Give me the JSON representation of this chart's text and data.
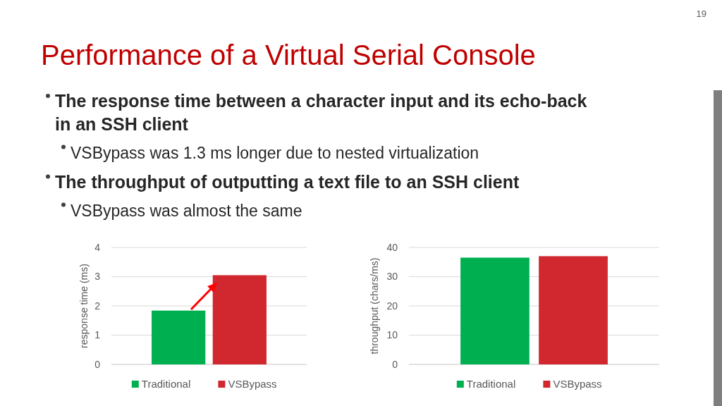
{
  "chart_data": [
    {
      "type": "other",
      "title": "Performance of a Virtual Serial Console",
      "annotations": [
        "19",
        "The response time between a character input and its echo-back in an SSH client",
        "VSBypass was 1.3 ms longer due to nested virtualization",
        "The throughput of outputting a text file to an SSH client",
        "VSBypass was almost the same"
      ]
    },
    {
      "type": "bar",
      "categories": [
        null
      ],
      "ylabel": "response time (ms)",
      "ylim": [
        0,
        4
      ],
      "yticks": [
        0,
        1,
        2,
        3,
        4
      ],
      "grid": "y",
      "legend": "bottom",
      "series": [
        {
          "name": "Traditional",
          "color": "#00b050",
          "values": [
            1.84
          ]
        },
        {
          "name": "VSBypass",
          "color": "#d0282e",
          "values": [
            3.05
          ]
        }
      ]
    },
    {
      "type": "bar",
      "categories": [
        null
      ],
      "ylabel": "throughput (chars/ms)",
      "ylim": [
        0,
        40
      ],
      "yticks": [
        0,
        10,
        20,
        30,
        40
      ],
      "grid": "y",
      "legend": "bottom",
      "series": [
        {
          "name": "Traditional",
          "color": "#00b050",
          "values": [
            36.5
          ]
        },
        {
          "name": "VSBypass",
          "color": "#d0282e",
          "values": [
            37.0
          ]
        }
      ]
    }
  ]
}
